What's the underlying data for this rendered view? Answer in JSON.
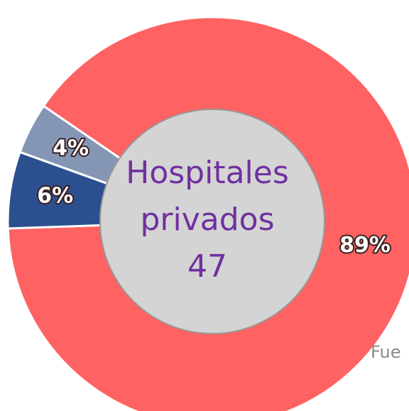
{
  "chart_data": {
    "type": "donut",
    "center_text": [
      "Hospitales",
      "privados",
      "47"
    ],
    "categories": [
      null,
      null,
      null
    ],
    "values": [
      89,
      6,
      4
    ],
    "value_labels": [
      "89%",
      "6%",
      "4%"
    ],
    "colors": [
      "#ff6262",
      "#2c4f8f",
      "#8596b5"
    ],
    "note": "Fue"
  }
}
